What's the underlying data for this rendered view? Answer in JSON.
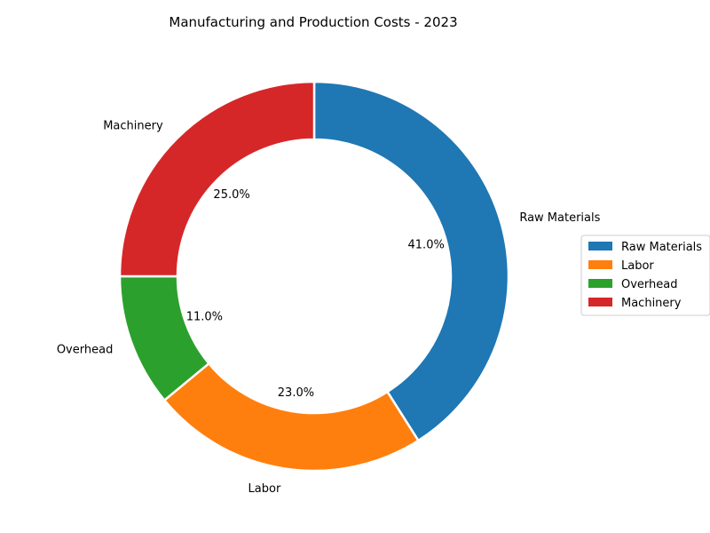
{
  "chart_data": {
    "type": "pie",
    "variant": "donut",
    "title": "Manufacturing and Production Costs - 2023",
    "categories": [
      "Raw Materials",
      "Labor",
      "Overhead",
      "Machinery"
    ],
    "values": [
      41.0,
      23.0,
      11.0,
      25.0
    ],
    "percent_labels": [
      "41.0%",
      "23.0%",
      "11.0%",
      "25.0%"
    ],
    "colors": [
      "#1f77b4",
      "#ff7f0e",
      "#2ca02c",
      "#d62728"
    ],
    "legend": {
      "placement": "right",
      "entries": [
        "Raw Materials",
        "Labor",
        "Overhead",
        "Machinery"
      ]
    },
    "start_angle": "top",
    "direction": "clockwise"
  }
}
